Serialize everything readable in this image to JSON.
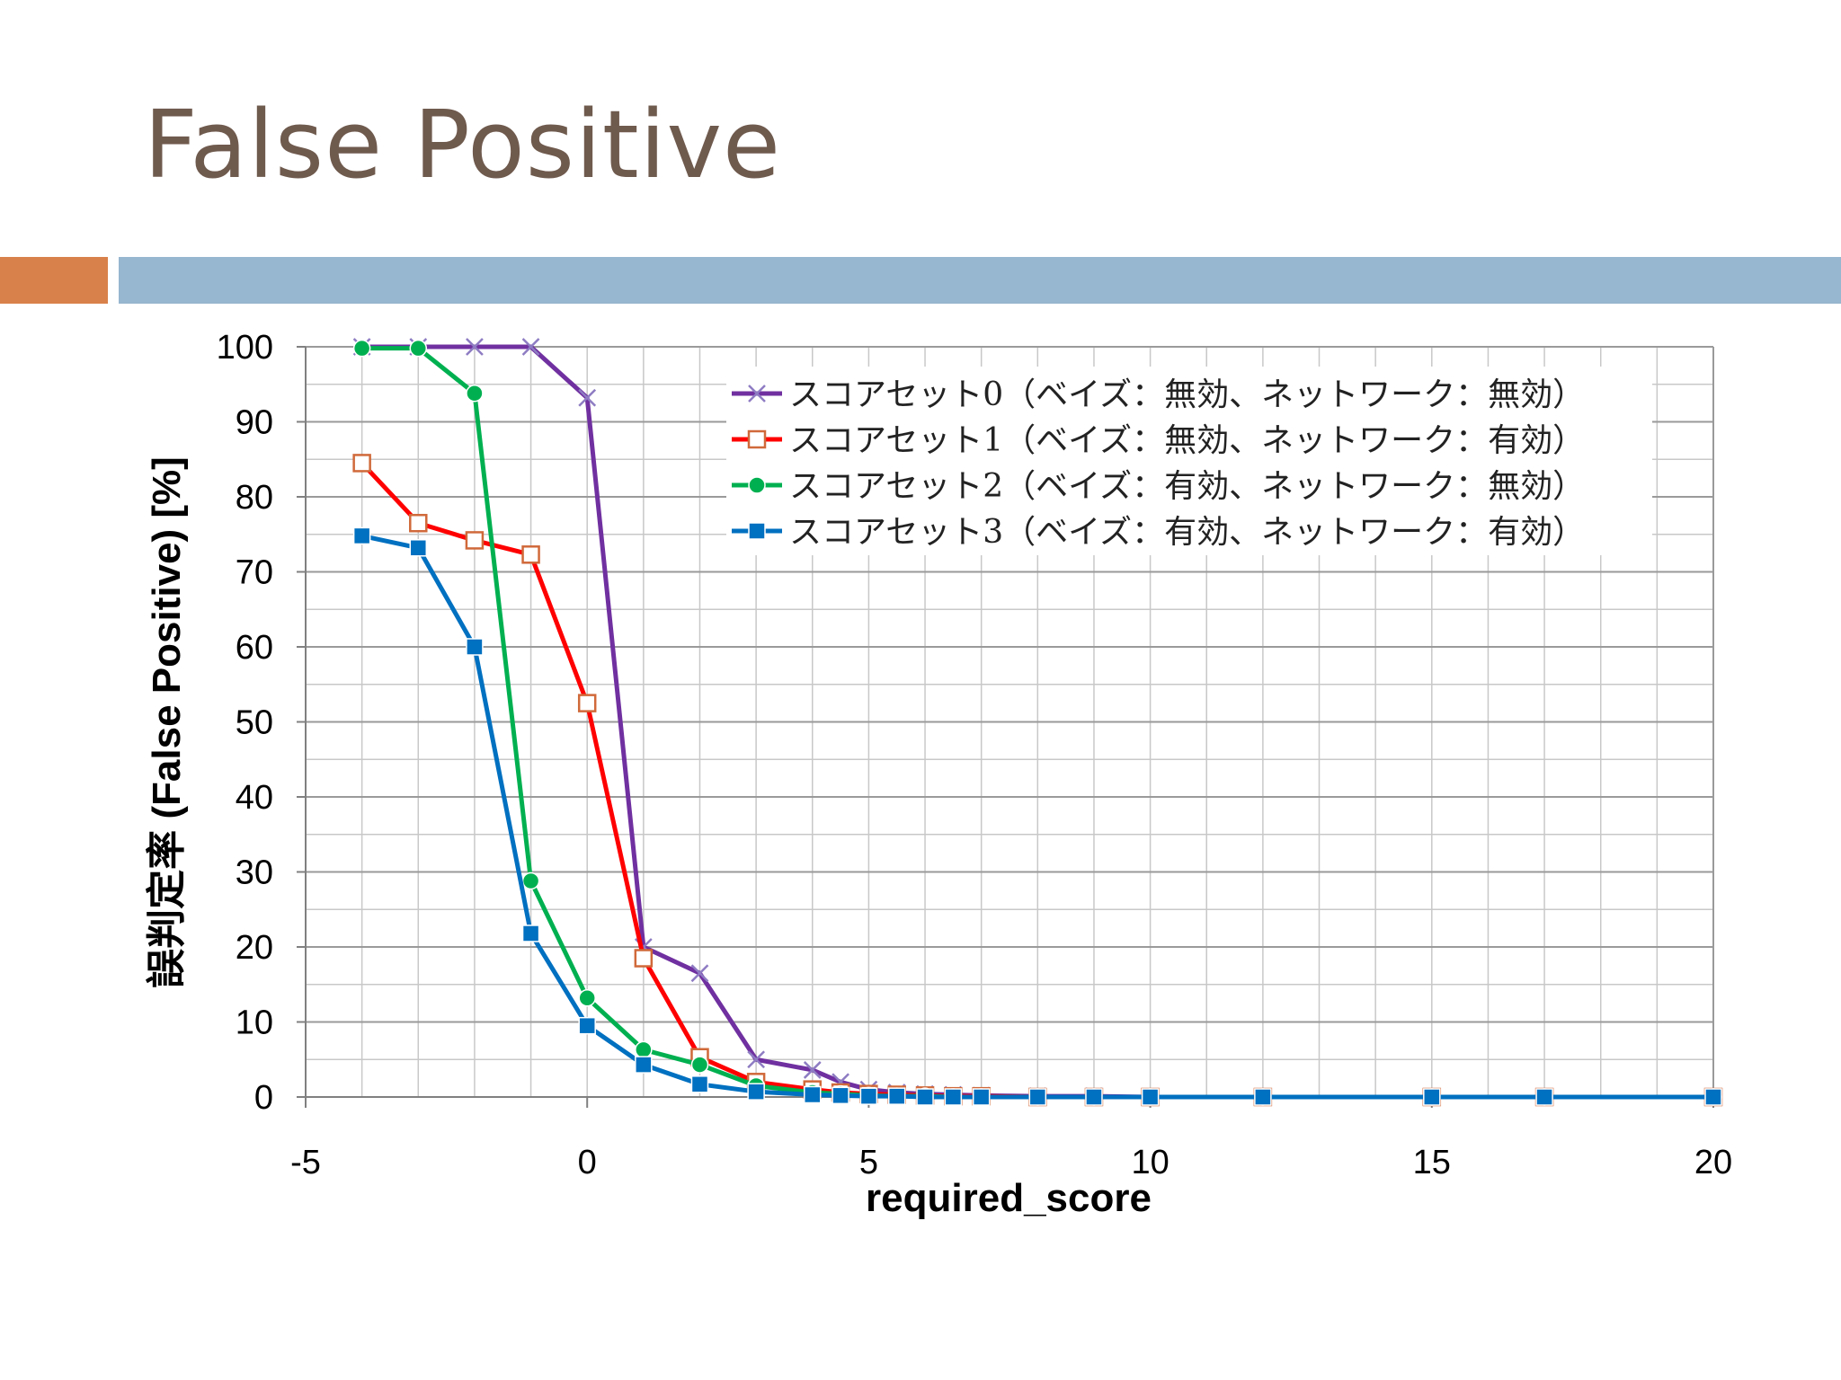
{
  "slide": {
    "title": "False Positive"
  },
  "colors": {
    "title": "#6f5a4e",
    "accent_orange": "#d9814a",
    "accent_blue": "#97b6cf"
  },
  "chart_data": {
    "type": "line",
    "xlabel": "required_score",
    "ylabel": "誤判定率 (False Positive) [%]",
    "xlim": [
      -5,
      20
    ],
    "ylim": [
      0,
      100
    ],
    "xticks": [
      -5,
      0,
      5,
      10,
      15,
      20
    ],
    "yticks": [
      0,
      10,
      20,
      30,
      40,
      50,
      60,
      70,
      80,
      90,
      100
    ],
    "grid": true,
    "legend_position": "top-right",
    "series": [
      {
        "name": "スコアセット0（ベイズ：無効、ネットワーク：無効）",
        "color": "#7030a0",
        "marker": "x",
        "x": [
          -4,
          -3,
          -2,
          -1,
          0,
          1,
          2,
          3,
          4,
          4.5,
          5,
          5.5,
          6,
          6.5,
          7,
          8,
          9,
          10,
          12,
          15,
          17,
          20
        ],
        "y": [
          100,
          100,
          100,
          100,
          93.2,
          20,
          16.5,
          5,
          3.6,
          2,
          1,
          0.6,
          0.4,
          0.3,
          0.2,
          0.1,
          0.1,
          0,
          0,
          0,
          0,
          0
        ]
      },
      {
        "name": "スコアセット1（ベイズ：無効、ネットワーク：有効）",
        "color": "#ff0000",
        "marker": "square-open",
        "x": [
          -4,
          -3,
          -2,
          -1,
          0,
          1,
          2,
          3,
          4,
          4.5,
          5,
          5.5,
          6,
          6.5,
          7,
          8,
          9,
          10,
          12,
          15,
          17,
          20
        ],
        "y": [
          84.5,
          76.5,
          74.2,
          72.3,
          52.5,
          18.5,
          5.3,
          2,
          1,
          0.6,
          0.4,
          0.3,
          0.2,
          0.1,
          0.1,
          0,
          0,
          0,
          0,
          0,
          0,
          0
        ]
      },
      {
        "name": "スコアセット2（ベイズ：有効、ネットワーク：無効）",
        "color": "#00b050",
        "marker": "circle",
        "x": [
          -4,
          -3,
          -2,
          -1,
          0,
          1,
          2,
          3,
          4,
          4.5,
          5,
          5.5,
          6,
          6.5,
          7,
          8,
          9,
          10,
          12,
          15,
          17,
          20
        ],
        "y": [
          99.8,
          99.8,
          93.8,
          28.8,
          13.2,
          6.3,
          4.3,
          1.5,
          0.6,
          0.4,
          0.2,
          0.1,
          0.1,
          0,
          0,
          0,
          0,
          0,
          0,
          0,
          0,
          0
        ]
      },
      {
        "name": "スコアセット3（ベイズ：有効、ネットワーク：有効）",
        "color": "#0070c0",
        "marker": "square",
        "x": [
          -4,
          -3,
          -2,
          -1,
          0,
          1,
          2,
          3,
          4,
          4.5,
          5,
          5.5,
          6,
          6.5,
          7,
          8,
          9,
          10,
          12,
          15,
          17,
          20
        ],
        "y": [
          74.8,
          73.2,
          60,
          21.8,
          9.5,
          4.3,
          1.7,
          0.7,
          0.3,
          0.2,
          0.1,
          0.1,
          0,
          0,
          0,
          0,
          0,
          0,
          0,
          0,
          0,
          0
        ]
      }
    ]
  }
}
